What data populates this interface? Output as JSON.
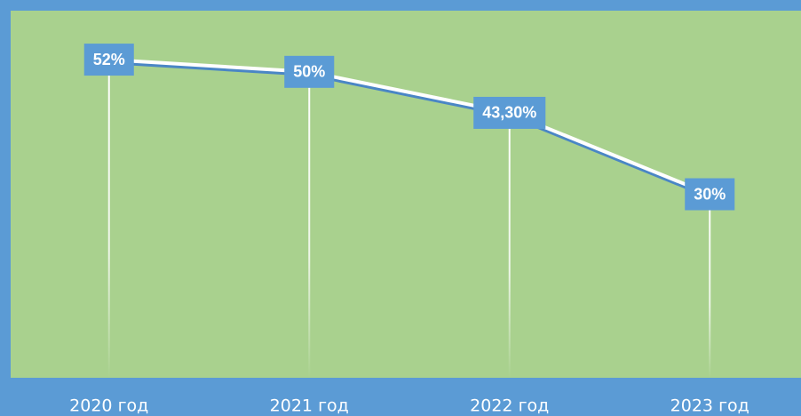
{
  "chart_data": {
    "type": "line",
    "categories": [
      "2020 год",
      "2021 год",
      "2022 год",
      "2023 год"
    ],
    "series": [
      {
        "color": "#ffffff",
        "values": [
          52,
          50,
          43.3,
          30
        ],
        "value_labels": [
          "52%",
          "50%",
          "43,30%",
          "30%"
        ]
      }
    ],
    "ylim": [
      0,
      60
    ],
    "drop_lines": true
  }
}
